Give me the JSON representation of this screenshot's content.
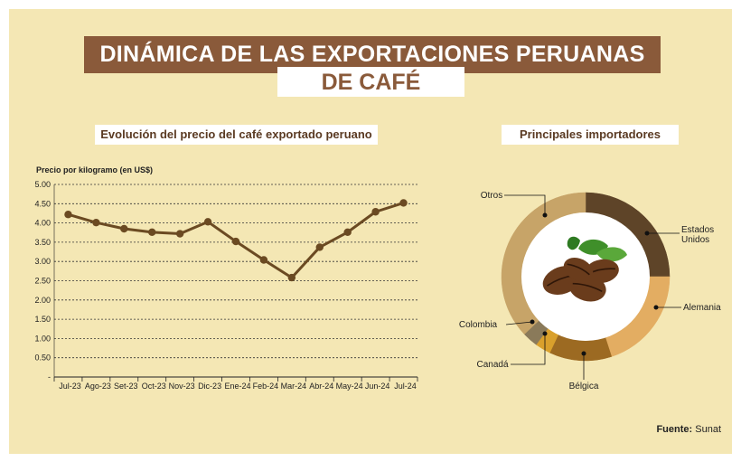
{
  "title_line1": "DINÁMICA DE LAS EXPORTACIONES PERUANAS",
  "title_line2": "DE CAFÉ",
  "source_label": "Fuente:",
  "source_value": "Sunat",
  "colors": {
    "background": "#f4e7b4",
    "title_bar": "#8a5a3a",
    "line": "#6b4a22",
    "grid": "#333333"
  },
  "chart_data": [
    {
      "type": "line",
      "title": "Evolución del precio del café exportado peruano",
      "ylabel": "Precio  por kilogramo (en US$)",
      "xlabel": "",
      "categories": [
        "Jul-23",
        "Ago-23",
        "Set-23",
        "Oct-23",
        "Nov-23",
        "Dic-23",
        "Ene-24",
        "Feb-24",
        "Mar-24",
        "Abr-24",
        "May-24",
        "Jun-24",
        "Jul-24"
      ],
      "values": [
        4.22,
        4.01,
        3.85,
        3.76,
        3.72,
        4.03,
        3.52,
        3.04,
        2.58,
        3.37,
        3.76,
        4.29,
        4.52
      ],
      "yticks": [
        "5.00",
        "4.50",
        "4.00",
        "3.50",
        "3.00",
        "2.50",
        "2.00",
        "1.50",
        "1.00",
        "0.50",
        "-"
      ],
      "ylim": [
        0,
        5
      ],
      "grid": true,
      "grid_style": "dashed"
    },
    {
      "type": "pie",
      "title": "Principales importadores",
      "donut": true,
      "center_icon": "coffee-beans-icon",
      "slices": [
        {
          "name": "Estados Unidos",
          "value": 25,
          "color": "#5e4428"
        },
        {
          "name": "Alemania",
          "value": 20,
          "color": "#e3ad62"
        },
        {
          "name": "Bélgica",
          "value": 12,
          "color": "#9c6a22"
        },
        {
          "name": "Canadá",
          "value": 3,
          "color": "#d9a02c"
        },
        {
          "name": "Colombia",
          "value": 3,
          "color": "#8a7a5a"
        },
        {
          "name": "Otros",
          "value": 37,
          "color": "#c7a468"
        }
      ]
    }
  ]
}
